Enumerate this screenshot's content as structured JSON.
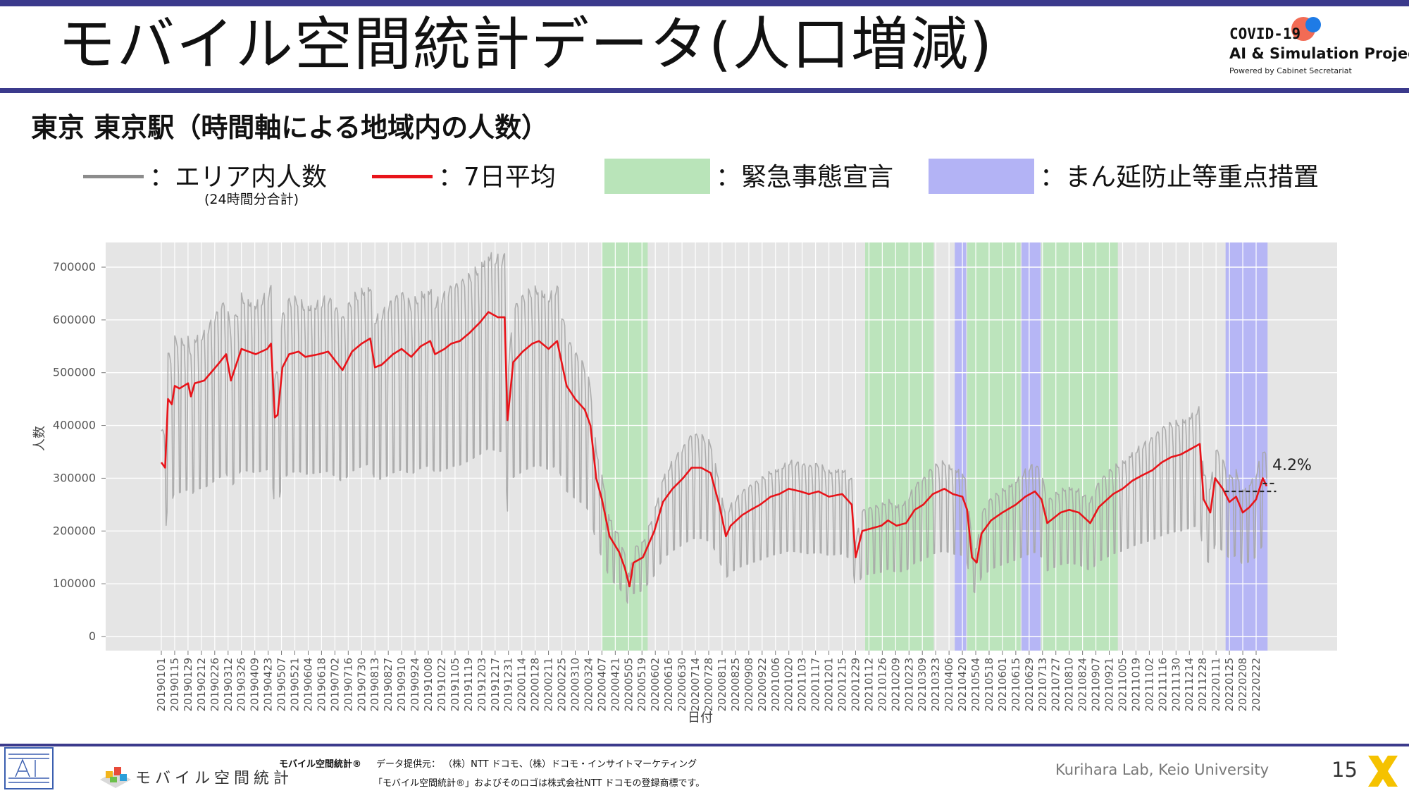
{
  "slide": {
    "title": "モバイル空間統計データ(人口増減)",
    "subtitle": "東京 東京駅（時間軸による地域内の人数）",
    "page_number": "15",
    "credit": "Kurihara Lab, Keio University"
  },
  "logo": {
    "line1": "COVID-19",
    "line2": "AI & Simulation Project",
    "line3": "Powered by Cabinet Secretariat",
    "colors": {
      "orange": "#f26b55",
      "blue": "#1e7be6"
    }
  },
  "legend": {
    "gray_label": "：エリア内人数",
    "gray_note": "(24時間分合計)",
    "red_label": "：7日平均",
    "green_label": "：緊急事態宣言",
    "purple_label": "：まん延防止等重点措置"
  },
  "footer": {
    "brand_text": "モバイル空間統計",
    "trademark_label": "モバイル空間統計®",
    "provider": "データ提供元： （株）NTT ドコモ、（株）ドコモ・インサイトマーケティング",
    "notice": "「モバイル空間統計®」およびそのロゴは株式会社NTT ドコモの登録商標です。"
  },
  "colors": {
    "accent": "#3b3a8c",
    "raw_series": "#a6a6a6",
    "avg_series": "#e8141a",
    "emergency": "#b9e4b9",
    "priority": "#b3b3f5",
    "plot_bg": "#e5e5e5"
  },
  "chart_data": {
    "type": "line",
    "title": "",
    "xlabel": "日付",
    "ylabel": "人数",
    "ylim": [
      0,
      760000
    ],
    "yticks": [
      0,
      100000,
      200000,
      300000,
      400000,
      500000,
      600000,
      700000
    ],
    "grid": true,
    "annotation": "4.2%",
    "x_tick_labels": [
      "20190101",
      "20190115",
      "20190129",
      "20190212",
      "20190226",
      "20190312",
      "20190326",
      "20190409",
      "20190423",
      "20190507",
      "20190521",
      "20190604",
      "20190618",
      "20190702",
      "20190716",
      "20190730",
      "20190813",
      "20190827",
      "20190910",
      "20190924",
      "20191008",
      "20191022",
      "20191105",
      "20191119",
      "20191203",
      "20191217",
      "20191231",
      "20200114",
      "20200128",
      "20200211",
      "20200225",
      "20200310",
      "20200324",
      "20200407",
      "20200421",
      "20200505",
      "20200519",
      "20200602",
      "20200616",
      "20200630",
      "20200714",
      "20200728",
      "20200811",
      "20200825",
      "20200908",
      "20200922",
      "20201006",
      "20201020",
      "20201103",
      "20201117",
      "20201201",
      "20201215",
      "20201229",
      "20210112",
      "20210126",
      "20210209",
      "20210223",
      "20210309",
      "20210323",
      "20210406",
      "20210420",
      "20210504",
      "20210518",
      "20210601",
      "20210615",
      "20210629",
      "20210713",
      "20210727",
      "20210810",
      "20210824",
      "20210907",
      "20210921",
      "20211005",
      "20211019",
      "20211102",
      "20211116",
      "20211130",
      "20211214",
      "20211228",
      "20220111",
      "20220125",
      "20220208",
      "20220222"
    ],
    "shaded_periods": [
      {
        "type": "emergency",
        "start": "20200407",
        "end": "20200525"
      },
      {
        "type": "emergency",
        "start": "20210108",
        "end": "20210321"
      },
      {
        "type": "priority",
        "start": "20210412",
        "end": "20210424"
      },
      {
        "type": "emergency",
        "start": "20210425",
        "end": "20210620"
      },
      {
        "type": "priority",
        "start": "20210621",
        "end": "20210711"
      },
      {
        "type": "emergency",
        "start": "20210712",
        "end": "20210930"
      },
      {
        "type": "priority",
        "start": "20220121",
        "end": "20220306"
      }
    ],
    "series": [
      {
        "name": "7日平均",
        "points": [
          [
            "20190101",
            330000
          ],
          [
            "20190105",
            320000
          ],
          [
            "20190108",
            450000
          ],
          [
            "20190112",
            440000
          ],
          [
            "20190115",
            475000
          ],
          [
            "20190120",
            470000
          ],
          [
            "20190129",
            480000
          ],
          [
            "20190201",
            455000
          ],
          [
            "20190205",
            480000
          ],
          [
            "20190215",
            485000
          ],
          [
            "20190301",
            515000
          ],
          [
            "20190310",
            535000
          ],
          [
            "20190315",
            485000
          ],
          [
            "20190326",
            545000
          ],
          [
            "20190410",
            535000
          ],
          [
            "20190422",
            545000
          ],
          [
            "20190426",
            555000
          ],
          [
            "20190430",
            415000
          ],
          [
            "20190503",
            420000
          ],
          [
            "20190508",
            510000
          ],
          [
            "20190515",
            535000
          ],
          [
            "20190525",
            540000
          ],
          [
            "20190601",
            530000
          ],
          [
            "20190615",
            535000
          ],
          [
            "20190625",
            540000
          ],
          [
            "20190710",
            505000
          ],
          [
            "20190720",
            540000
          ],
          [
            "20190730",
            555000
          ],
          [
            "20190808",
            565000
          ],
          [
            "20190813",
            510000
          ],
          [
            "20190820",
            515000
          ],
          [
            "20190901",
            535000
          ],
          [
            "20190910",
            545000
          ],
          [
            "20190920",
            530000
          ],
          [
            "20190930",
            550000
          ],
          [
            "20191010",
            560000
          ],
          [
            "20191015",
            535000
          ],
          [
            "20191025",
            545000
          ],
          [
            "20191101",
            555000
          ],
          [
            "20191110",
            560000
          ],
          [
            "20191120",
            575000
          ],
          [
            "20191201",
            595000
          ],
          [
            "20191210",
            615000
          ],
          [
            "20191220",
            605000
          ],
          [
            "20191227",
            605000
          ],
          [
            "20191230",
            410000
          ],
          [
            "20200105",
            520000
          ],
          [
            "20200115",
            540000
          ],
          [
            "20200125",
            555000
          ],
          [
            "20200201",
            560000
          ],
          [
            "20200211",
            545000
          ],
          [
            "20200220",
            560000
          ],
          [
            "20200301",
            475000
          ],
          [
            "20200310",
            450000
          ],
          [
            "20200320",
            430000
          ],
          [
            "20200326",
            400000
          ],
          [
            "20200401",
            300000
          ],
          [
            "20200407",
            260000
          ],
          [
            "20200415",
            190000
          ],
          [
            "20200425",
            160000
          ],
          [
            "20200501",
            130000
          ],
          [
            "20200506",
            95000
          ],
          [
            "20200510",
            140000
          ],
          [
            "20200520",
            150000
          ],
          [
            "20200601",
            200000
          ],
          [
            "20200610",
            255000
          ],
          [
            "20200620",
            280000
          ],
          [
            "20200701",
            300000
          ],
          [
            "20200710",
            320000
          ],
          [
            "20200720",
            320000
          ],
          [
            "20200730",
            310000
          ],
          [
            "20200808",
            250000
          ],
          [
            "20200815",
            190000
          ],
          [
            "20200820",
            210000
          ],
          [
            "20200901",
            230000
          ],
          [
            "20200910",
            240000
          ],
          [
            "20200920",
            250000
          ],
          [
            "20201001",
            265000
          ],
          [
            "20201010",
            270000
          ],
          [
            "20201020",
            280000
          ],
          [
            "20201101",
            275000
          ],
          [
            "20201110",
            270000
          ],
          [
            "20201120",
            275000
          ],
          [
            "20201201",
            265000
          ],
          [
            "20201215",
            270000
          ],
          [
            "20201225",
            250000
          ],
          [
            "20201229",
            150000
          ],
          [
            "20210105",
            200000
          ],
          [
            "20210115",
            205000
          ],
          [
            "20210125",
            210000
          ],
          [
            "20210201",
            220000
          ],
          [
            "20210210",
            210000
          ],
          [
            "20210220",
            215000
          ],
          [
            "20210301",
            240000
          ],
          [
            "20210310",
            250000
          ],
          [
            "20210320",
            270000
          ],
          [
            "20210401",
            280000
          ],
          [
            "20210410",
            270000
          ],
          [
            "20210420",
            265000
          ],
          [
            "20210425",
            240000
          ],
          [
            "20210430",
            150000
          ],
          [
            "20210505",
            140000
          ],
          [
            "20210510",
            195000
          ],
          [
            "20210520",
            220000
          ],
          [
            "20210601",
            235000
          ],
          [
            "20210615",
            250000
          ],
          [
            "20210625",
            265000
          ],
          [
            "20210705",
            275000
          ],
          [
            "20210712",
            260000
          ],
          [
            "20210718",
            215000
          ],
          [
            "20210801",
            235000
          ],
          [
            "20210810",
            240000
          ],
          [
            "20210820",
            235000
          ],
          [
            "20210901",
            215000
          ],
          [
            "20210910",
            245000
          ],
          [
            "20210925",
            270000
          ],
          [
            "20211005",
            280000
          ],
          [
            "20211015",
            295000
          ],
          [
            "20211025",
            305000
          ],
          [
            "20211105",
            315000
          ],
          [
            "20211115",
            330000
          ],
          [
            "20211125",
            340000
          ],
          [
            "20211205",
            345000
          ],
          [
            "20211215",
            355000
          ],
          [
            "20211225",
            365000
          ],
          [
            "20211229",
            260000
          ],
          [
            "20220105",
            235000
          ],
          [
            "20220110",
            300000
          ],
          [
            "20220118",
            280000
          ],
          [
            "20220125",
            255000
          ],
          [
            "20220201",
            265000
          ],
          [
            "20220208",
            235000
          ],
          [
            "20220215",
            245000
          ],
          [
            "20220222",
            260000
          ],
          [
            "20220301",
            300000
          ],
          [
            "20220305",
            285000
          ]
        ]
      }
    ],
    "reference_lines": [
      {
        "y": 275000,
        "from": "20220120",
        "to": "20220315"
      },
      {
        "y": 290000,
        "from": "20220301",
        "to": "20220315"
      }
    ]
  }
}
